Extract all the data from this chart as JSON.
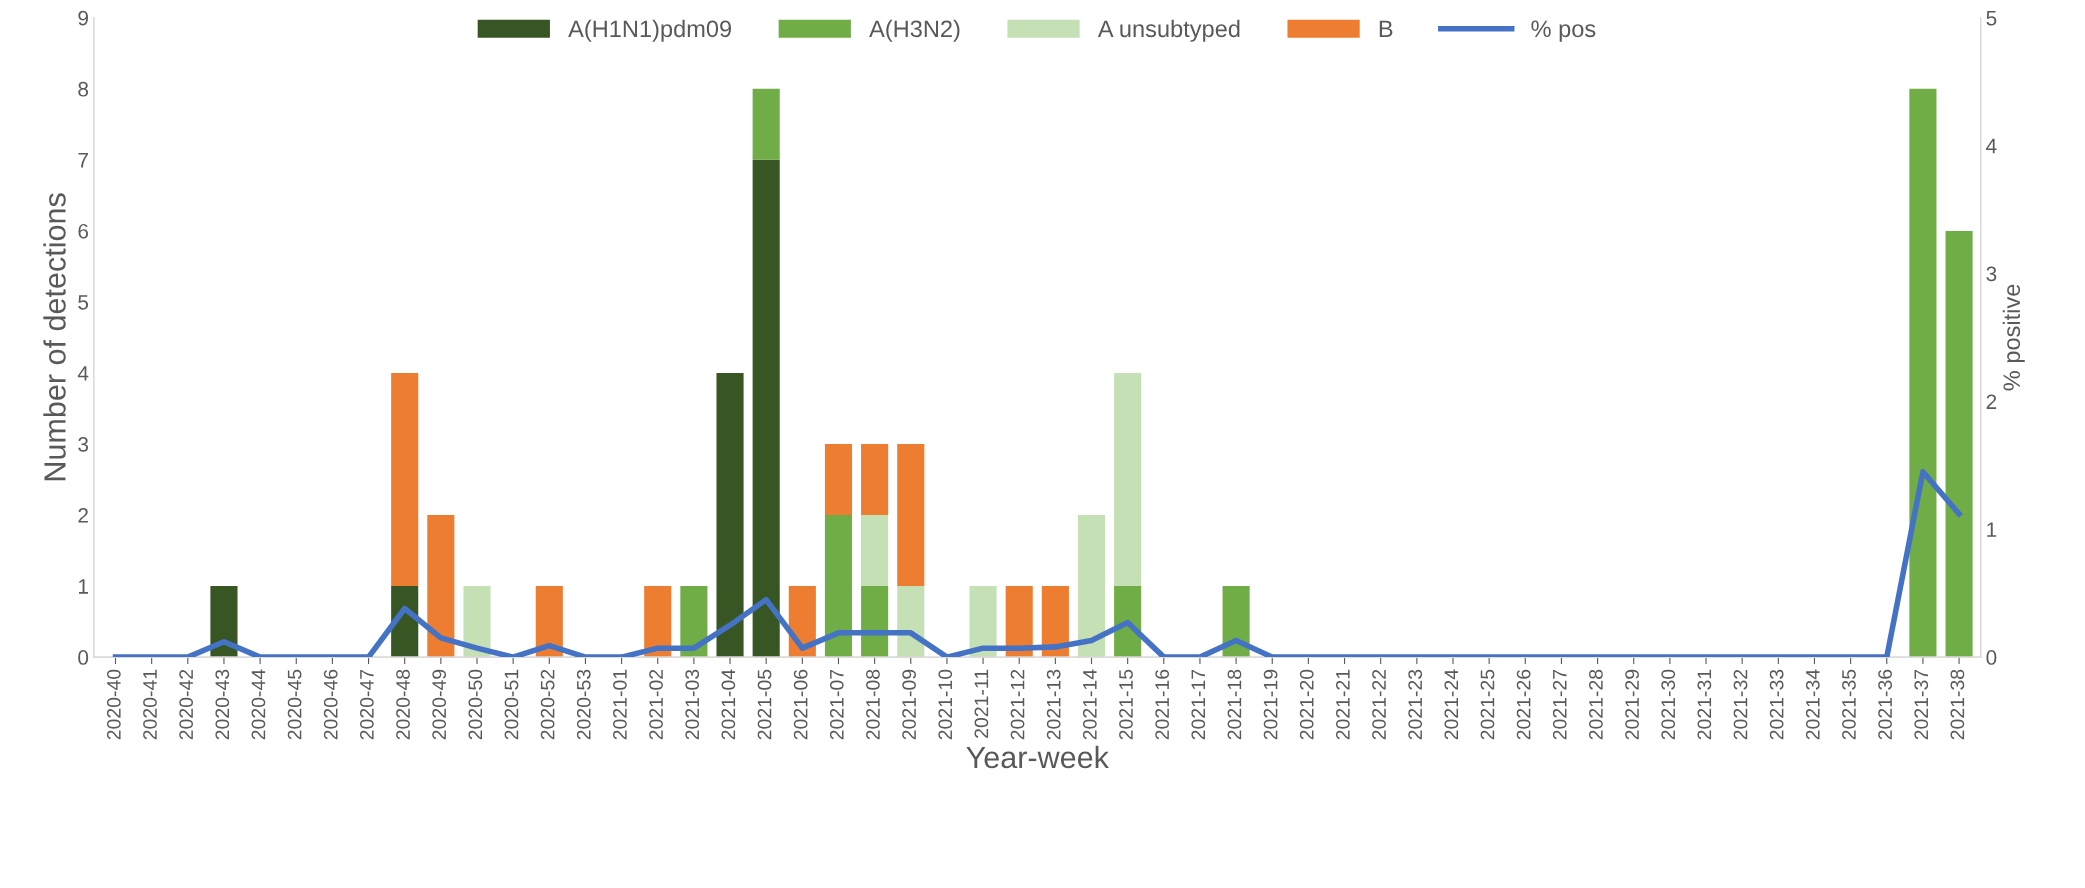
{
  "chart_data": {
    "type": "bar",
    "stacked": true,
    "xlabel": "Year-week",
    "ylabel": "Number of detections",
    "y2label": "% positive",
    "categories": [
      "2020-40",
      "2020-41",
      "2020-42",
      "2020-43",
      "2020-44",
      "2020-45",
      "2020-46",
      "2020-47",
      "2020-48",
      "2020-49",
      "2020-50",
      "2020-51",
      "2020-52",
      "2020-53",
      "2021-01",
      "2021-02",
      "2021-03",
      "2021-04",
      "2021-05",
      "2021-06",
      "2021-07",
      "2021-08",
      "2021-09",
      "2021-10",
      "2021-11",
      "2021-12",
      "2021-13",
      "2021-14",
      "2021-15",
      "2021-16",
      "2021-17",
      "2021-18",
      "2021-19",
      "2021-20",
      "2021-21",
      "2021-22",
      "2021-23",
      "2021-24",
      "2021-25",
      "2021-26",
      "2021-27",
      "2021-28",
      "2021-29",
      "2021-30",
      "2021-31",
      "2021-32",
      "2021-33",
      "2021-34",
      "2021-35",
      "2021-36",
      "2021-37",
      "2021-38"
    ],
    "series": [
      {
        "name": "A(H1N1)pdm09",
        "color": "#375623",
        "values": [
          0,
          0,
          0,
          1,
          0,
          0,
          0,
          0,
          1,
          0,
          0,
          0,
          0,
          0,
          0,
          0,
          0,
          4,
          7,
          0,
          0,
          0,
          0,
          0,
          0,
          0,
          0,
          0,
          0,
          0,
          0,
          0,
          0,
          0,
          0,
          0,
          0,
          0,
          0,
          0,
          0,
          0,
          0,
          0,
          0,
          0,
          0,
          0,
          0,
          0,
          0,
          0
        ]
      },
      {
        "name": "A(H3N2)",
        "color": "#70ad47",
        "values": [
          0,
          0,
          0,
          0,
          0,
          0,
          0,
          0,
          0,
          0,
          0,
          0,
          0,
          0,
          0,
          0,
          1,
          0,
          1,
          0,
          2,
          1,
          0,
          0,
          0,
          0,
          0,
          0,
          1,
          0,
          0,
          1,
          0,
          0,
          0,
          0,
          0,
          0,
          0,
          0,
          0,
          0,
          0,
          0,
          0,
          0,
          0,
          0,
          0,
          0,
          8,
          6
        ]
      },
      {
        "name": "A unsubtyped",
        "color": "#c5e0b4",
        "values": [
          0,
          0,
          0,
          0,
          0,
          0,
          0,
          0,
          0,
          0,
          1,
          0,
          0,
          0,
          0,
          0,
          0,
          0,
          0,
          0,
          0,
          1,
          1,
          0,
          1,
          0,
          0,
          2,
          3,
          0,
          0,
          0,
          0,
          0,
          0,
          0,
          0,
          0,
          0,
          0,
          0,
          0,
          0,
          0,
          0,
          0,
          0,
          0,
          0,
          0,
          0,
          0
        ]
      },
      {
        "name": "B",
        "color": "#ed7d31",
        "values": [
          0,
          0,
          0,
          0,
          0,
          0,
          0,
          0,
          3,
          2,
          0,
          0,
          1,
          0,
          0,
          1,
          0,
          0,
          0,
          1,
          1,
          1,
          2,
          0,
          0,
          1,
          1,
          0,
          0,
          0,
          0,
          0,
          0,
          0,
          0,
          0,
          0,
          0,
          0,
          0,
          0,
          0,
          0,
          0,
          0,
          0,
          0,
          0,
          0,
          0,
          0,
          0
        ]
      },
      {
        "name": "% pos",
        "type": "line",
        "axis": "y2",
        "color": "#4472c4",
        "values": [
          0,
          0,
          0,
          0.12,
          0,
          0,
          0,
          0,
          0.38,
          0.15,
          0.07,
          0,
          0.09,
          0,
          0,
          0.07,
          0.07,
          0.25,
          0.45,
          0.07,
          0.19,
          0.19,
          0.19,
          0,
          0.07,
          0.07,
          0.08,
          0.13,
          0.27,
          0,
          0,
          0.13,
          0,
          0,
          0,
          0,
          0,
          0,
          0,
          0,
          0,
          0,
          0,
          0,
          0,
          0,
          0,
          0,
          0,
          0,
          1.45,
          1.12
        ]
      }
    ],
    "ylim": [
      0,
      9
    ],
    "yticks": [
      0,
      1,
      2,
      3,
      4,
      5,
      6,
      7,
      8,
      9
    ],
    "y2lim": [
      0,
      5
    ],
    "y2ticks": [
      0,
      1,
      2,
      3,
      4,
      5
    ],
    "legend": "top",
    "grid": false,
    "marker": "none",
    "line_style": "solid"
  }
}
